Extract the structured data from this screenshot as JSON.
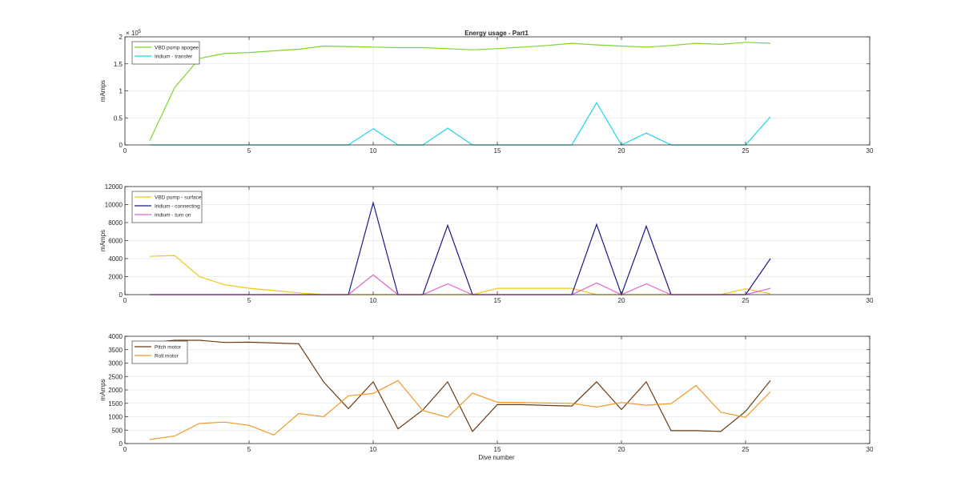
{
  "figure": {
    "title": "Energy usage - Part1",
    "xlabel": "Dive number"
  },
  "chart_data": [
    {
      "type": "line",
      "title": "Energy usage - Part1",
      "xlabel": "",
      "ylabel": "mAmps",
      "y_exponent": "× 10",
      "y_exponent_power": "5",
      "xlim": [
        0,
        30
      ],
      "ylim": [
        0,
        2
      ],
      "xticks": [
        0,
        5,
        10,
        15,
        20,
        25,
        30
      ],
      "xtick_labels": [
        "0",
        "5",
        "10",
        "15",
        "20",
        "25",
        "30"
      ],
      "yticks": [
        0,
        0.5,
        1,
        1.5,
        2
      ],
      "ytick_labels": [
        "0",
        "0.5",
        "1",
        "1.5",
        "2"
      ],
      "grid": true,
      "legend_position": "top-left",
      "x": [
        1,
        2,
        3,
        4,
        5,
        6,
        7,
        8,
        9,
        10,
        11,
        12,
        13,
        14,
        15,
        16,
        17,
        18,
        19,
        20,
        21,
        22,
        23,
        24,
        25,
        26
      ],
      "series": [
        {
          "name": "VBD pump apogee",
          "color": "#7fd62a",
          "values": [
            0.08,
            1.06,
            1.6,
            1.69,
            1.71,
            1.74,
            1.77,
            1.83,
            1.82,
            1.81,
            1.8,
            1.8,
            1.78,
            1.76,
            1.78,
            1.81,
            1.84,
            1.88,
            1.85,
            1.83,
            1.81,
            1.84,
            1.88,
            1.86,
            1.9,
            1.88
          ]
        },
        {
          "name": "Iridium - transfer",
          "color": "#1ad6e6",
          "values": [
            0,
            0,
            0,
            0,
            0,
            0,
            0,
            0,
            0,
            0.3,
            0,
            0,
            0.31,
            0,
            0,
            0,
            0,
            0,
            0.78,
            0,
            0.22,
            0,
            0,
            0,
            0,
            0.52
          ]
        }
      ]
    },
    {
      "type": "line",
      "title": "",
      "xlabel": "",
      "ylabel": "mAmps",
      "xlim": [
        0,
        30
      ],
      "ylim": [
        0,
        12000
      ],
      "xticks": [
        0,
        5,
        10,
        15,
        20,
        25,
        30
      ],
      "xtick_labels": [
        "0",
        "5",
        "10",
        "15",
        "20",
        "25",
        "30"
      ],
      "yticks": [
        0,
        2000,
        4000,
        6000,
        8000,
        10000,
        12000
      ],
      "ytick_labels": [
        "0",
        "2000",
        "4000",
        "6000",
        "8000",
        "10000",
        "12000"
      ],
      "grid": true,
      "legend_position": "top-left",
      "x": [
        1,
        2,
        3,
        4,
        5,
        6,
        7,
        8,
        9,
        10,
        11,
        12,
        13,
        14,
        15,
        16,
        17,
        18,
        19,
        20,
        21,
        22,
        23,
        24,
        25,
        26
      ],
      "series": [
        {
          "name": "VBD pump - surface",
          "color": "#f2c518",
          "values": [
            4250,
            4350,
            2000,
            1100,
            700,
            450,
            200,
            0,
            0,
            0,
            0,
            0,
            0,
            0,
            700,
            700,
            700,
            700,
            0,
            0,
            0,
            0,
            0,
            0,
            650,
            100
          ]
        },
        {
          "name": "Iridium - connecting",
          "color": "#1a1a8a",
          "values": [
            0,
            0,
            0,
            0,
            0,
            0,
            0,
            0,
            0,
            10200,
            0,
            0,
            7700,
            0,
            0,
            0,
            0,
            0,
            7800,
            0,
            7600,
            0,
            0,
            0,
            0,
            4000
          ]
        },
        {
          "name": "Iridium - turn on",
          "color": "#e064c8",
          "values": [
            0,
            0,
            0,
            0,
            0,
            0,
            0,
            0,
            0,
            2200,
            0,
            0,
            1200,
            0,
            0,
            0,
            0,
            0,
            1300,
            0,
            1200,
            0,
            0,
            0,
            0,
            700
          ]
        }
      ]
    },
    {
      "type": "line",
      "title": "",
      "xlabel": "Dive number",
      "ylabel": "mAmps",
      "xlim": [
        0,
        30
      ],
      "ylim": [
        0,
        4000
      ],
      "xticks": [
        0,
        5,
        10,
        15,
        20,
        25,
        30
      ],
      "xtick_labels": [
        "0",
        "5",
        "10",
        "15",
        "20",
        "25",
        "30"
      ],
      "yticks": [
        0,
        500,
        1000,
        1500,
        2000,
        2500,
        3000,
        3500,
        4000
      ],
      "ytick_labels": [
        "0",
        "500",
        "1000",
        "1500",
        "2000",
        "2500",
        "3000",
        "3500",
        "4000"
      ],
      "grid": true,
      "legend_position": "top-left",
      "x": [
        1,
        2,
        3,
        4,
        5,
        6,
        7,
        8,
        9,
        10,
        11,
        12,
        13,
        14,
        15,
        16,
        17,
        18,
        19,
        20,
        21,
        22,
        23,
        24,
        25,
        26
      ],
      "series": [
        {
          "name": "Pitch motor",
          "color": "#6b3a10",
          "values": [
            3750,
            3850,
            3850,
            3770,
            3780,
            3750,
            3720,
            2300,
            1300,
            2300,
            550,
            1250,
            2300,
            450,
            1450,
            1450,
            1420,
            1400,
            2300,
            1270,
            2300,
            480,
            480,
            450,
            1200,
            2350
          ]
        },
        {
          "name": "Roll motor",
          "color": "#ee9a2a",
          "values": [
            150,
            280,
            750,
            800,
            680,
            320,
            1120,
            1000,
            1780,
            1870,
            2350,
            1230,
            980,
            1880,
            1540,
            1530,
            1510,
            1500,
            1360,
            1530,
            1430,
            1490,
            2160,
            1170,
            980,
            1930
          ]
        }
      ]
    }
  ]
}
